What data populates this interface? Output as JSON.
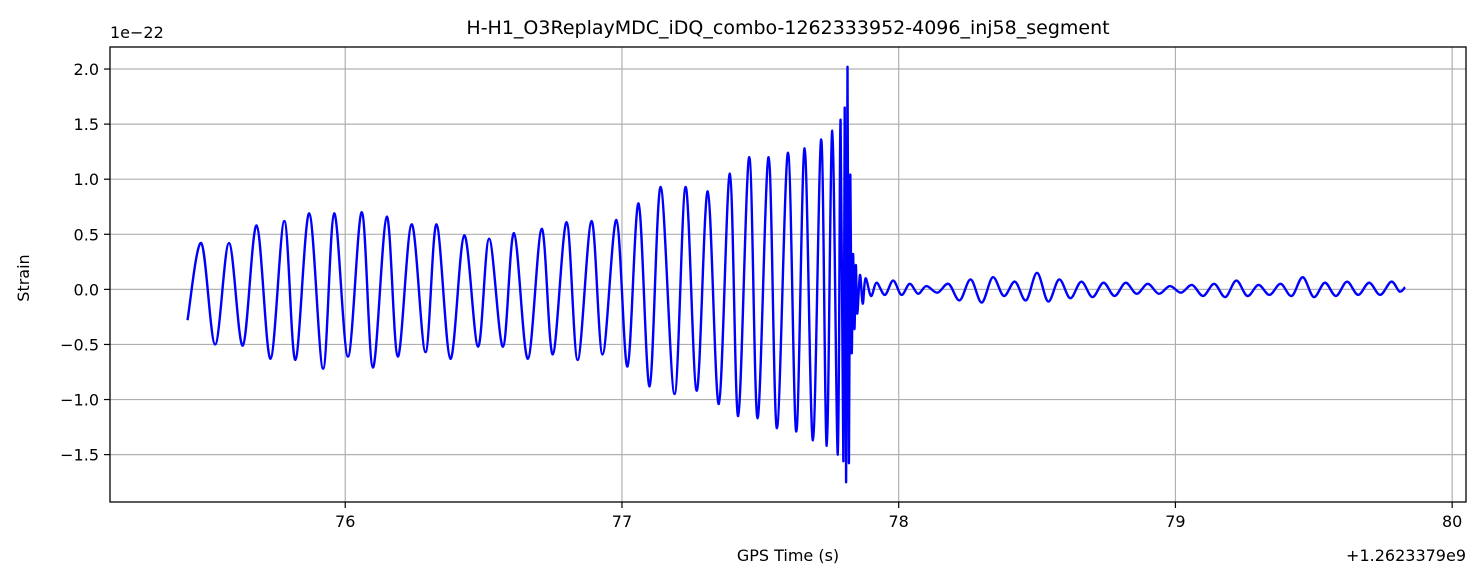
{
  "chart_data": {
    "type": "line",
    "title": "H-H1_O3ReplayMDC_iDQ_combo-1262333952-4096_inj58_segment",
    "xlabel": "GPS Time (s)",
    "ylabel": "Strain",
    "x_offset_label": "+1.2623379e9",
    "y_scale_label": "1e−22",
    "xlim": [
      75.15,
      80.05
    ],
    "ylim": [
      -1.93,
      2.2
    ],
    "x_ticks": [
      76,
      77,
      78,
      79,
      80
    ],
    "x_tick_labels": [
      "76",
      "77",
      "78",
      "79",
      "80"
    ],
    "y_ticks": [
      -1.5,
      -1.0,
      -0.5,
      0.0,
      0.5,
      1.0,
      1.5,
      2.0
    ],
    "y_tick_labels": [
      "−1.5",
      "−1.0",
      "−0.5",
      "0.0",
      "0.5",
      "1.0",
      "1.5",
      "2.0"
    ],
    "grid": true,
    "series": [
      {
        "color": "#0000ff",
        "x": [
          75.43,
          75.48,
          75.53,
          75.58,
          75.63,
          75.68,
          75.73,
          75.78,
          75.82,
          75.87,
          75.92,
          75.96,
          76.01,
          76.06,
          76.1,
          76.15,
          76.19,
          76.24,
          76.29,
          76.33,
          76.38,
          76.43,
          76.48,
          76.52,
          76.57,
          76.61,
          76.66,
          76.71,
          76.75,
          76.8,
          76.84,
          76.89,
          76.93,
          76.98,
          77.02,
          77.06,
          77.1,
          77.14,
          77.19,
          77.23,
          77.27,
          77.31,
          77.35,
          77.39,
          77.42,
          77.46,
          77.49,
          77.53,
          77.56,
          77.6,
          77.63,
          77.66,
          77.69,
          77.72,
          77.74,
          77.76,
          77.78,
          77.79,
          77.8,
          77.805,
          77.81,
          77.815,
          77.82,
          77.825,
          77.83,
          77.835,
          77.84,
          77.845,
          77.85,
          77.86,
          77.87,
          77.88,
          77.9,
          77.92,
          77.95,
          77.98,
          78.01,
          78.04,
          78.07,
          78.1,
          78.14,
          78.18,
          78.22,
          78.26,
          78.3,
          78.34,
          78.38,
          78.42,
          78.46,
          78.5,
          78.54,
          78.58,
          78.62,
          78.66,
          78.7,
          78.74,
          78.78,
          78.82,
          78.86,
          78.9,
          78.94,
          78.98,
          79.02,
          79.06,
          79.1,
          79.14,
          79.18,
          79.22,
          79.26,
          79.3,
          79.34,
          79.38,
          79.42,
          79.46,
          79.5,
          79.54,
          79.58,
          79.62,
          79.66,
          79.7,
          79.74,
          79.78,
          79.81,
          79.83
        ],
        "y": [
          -0.28,
          0.42,
          -0.5,
          0.42,
          -0.51,
          0.58,
          -0.63,
          0.62,
          -0.64,
          0.69,
          -0.72,
          0.69,
          -0.61,
          0.7,
          -0.71,
          0.66,
          -0.61,
          0.59,
          -0.57,
          0.59,
          -0.63,
          0.49,
          -0.52,
          0.46,
          -0.52,
          0.51,
          -0.63,
          0.55,
          -0.59,
          0.61,
          -0.64,
          0.62,
          -0.59,
          0.63,
          -0.7,
          0.78,
          -0.88,
          0.93,
          -0.95,
          0.93,
          -0.92,
          0.89,
          -1.04,
          1.05,
          -1.15,
          1.2,
          -1.17,
          1.2,
          -1.26,
          1.24,
          -1.29,
          1.28,
          -1.37,
          1.36,
          -1.42,
          1.44,
          -1.5,
          1.54,
          -1.56,
          1.65,
          -1.75,
          2.02,
          -1.57,
          1.03,
          -0.57,
          0.32,
          -0.36,
          0.22,
          -0.22,
          0.13,
          -0.13,
          0.1,
          -0.06,
          0.06,
          -0.05,
          0.08,
          -0.05,
          0.05,
          -0.04,
          0.03,
          -0.03,
          0.05,
          -0.1,
          0.09,
          -0.12,
          0.11,
          -0.06,
          0.07,
          -0.1,
          0.15,
          -0.11,
          0.09,
          -0.08,
          0.07,
          -0.07,
          0.06,
          -0.06,
          0.06,
          -0.04,
          0.05,
          -0.04,
          0.03,
          -0.03,
          0.04,
          -0.06,
          0.05,
          -0.07,
          0.08,
          -0.06,
          0.04,
          -0.05,
          0.05,
          -0.06,
          0.11,
          -0.07,
          0.06,
          -0.06,
          0.07,
          -0.05,
          0.06,
          -0.05,
          0.07,
          -0.02,
          0.02
        ]
      }
    ]
  }
}
